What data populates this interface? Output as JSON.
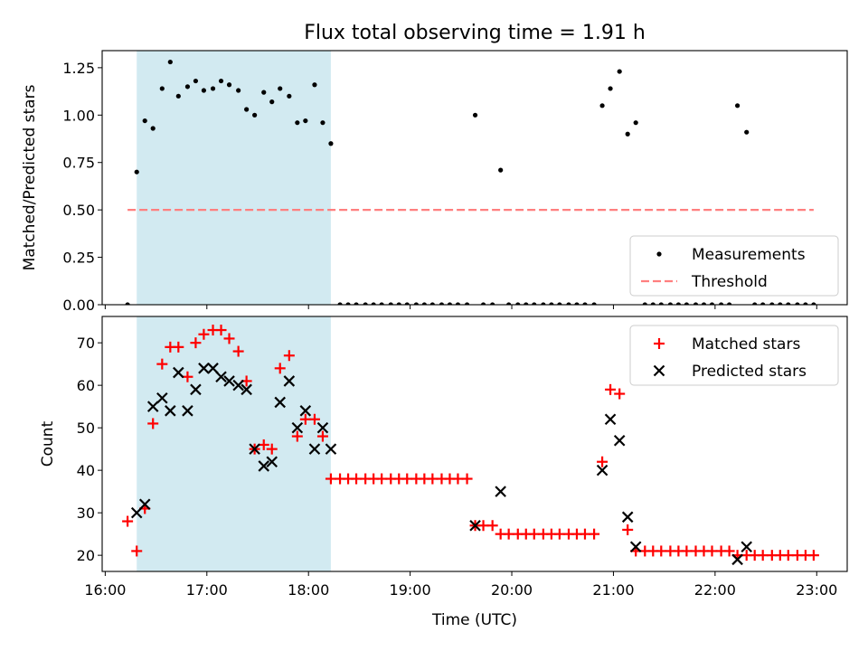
{
  "figure": {
    "title": "Flux total observing time = 1.91 h"
  },
  "chart_data": [
    {
      "type": "scatter",
      "panel": "top",
      "ylabel": "Matched/Predicted stars",
      "xlabel": "",
      "xlim": [
        15.97,
        23.3
      ],
      "ylim": [
        0,
        1.34
      ],
      "yticks": [
        0,
        0.25,
        0.5,
        0.75,
        1.0,
        1.25
      ],
      "ytick_labels": [
        "0.00",
        "0.25",
        "0.50",
        "0.75",
        "1.00",
        "1.25"
      ],
      "xticks": [
        16,
        17,
        18,
        19,
        20,
        21,
        22,
        23
      ],
      "shaded_span": {
        "x0": 16.31,
        "x1": 18.22,
        "color": "#add8e6"
      },
      "series": [
        {
          "name": "Measurements",
          "marker": "dot",
          "color": "#000000",
          "points": [
            [
              16.22,
              0.0
            ],
            [
              16.31,
              0.7
            ],
            [
              16.39,
              0.97
            ],
            [
              16.47,
              0.93
            ],
            [
              16.56,
              1.14
            ],
            [
              16.64,
              1.28
            ],
            [
              16.72,
              1.1
            ],
            [
              16.81,
              1.15
            ],
            [
              16.89,
              1.18
            ],
            [
              16.97,
              1.13
            ],
            [
              17.06,
              1.14
            ],
            [
              17.14,
              1.18
            ],
            [
              17.22,
              1.16
            ],
            [
              17.31,
              1.13
            ],
            [
              17.39,
              1.03
            ],
            [
              17.47,
              1.0
            ],
            [
              17.56,
              1.12
            ],
            [
              17.64,
              1.07
            ],
            [
              17.72,
              1.14
            ],
            [
              17.81,
              1.1
            ],
            [
              17.89,
              0.96
            ],
            [
              17.97,
              0.97
            ],
            [
              18.06,
              1.16
            ],
            [
              18.14,
              0.96
            ],
            [
              18.22,
              0.85
            ],
            [
              18.31,
              0
            ],
            [
              18.39,
              0
            ],
            [
              18.47,
              0
            ],
            [
              18.56,
              0
            ],
            [
              18.64,
              0
            ],
            [
              18.72,
              0
            ],
            [
              18.81,
              0
            ],
            [
              18.89,
              0
            ],
            [
              18.97,
              0
            ],
            [
              19.06,
              0
            ],
            [
              19.14,
              0
            ],
            [
              19.22,
              0
            ],
            [
              19.31,
              0
            ],
            [
              19.39,
              0
            ],
            [
              19.47,
              0
            ],
            [
              19.56,
              0
            ],
            [
              19.64,
              1.0
            ],
            [
              19.72,
              0
            ],
            [
              19.81,
              0
            ],
            [
              19.89,
              0.71
            ],
            [
              19.97,
              0
            ],
            [
              20.06,
              0
            ],
            [
              20.14,
              0
            ],
            [
              20.22,
              0
            ],
            [
              20.31,
              0
            ],
            [
              20.39,
              0
            ],
            [
              20.47,
              0
            ],
            [
              20.56,
              0
            ],
            [
              20.64,
              0
            ],
            [
              20.72,
              0
            ],
            [
              20.81,
              0
            ],
            [
              20.89,
              1.05
            ],
            [
              20.97,
              1.14
            ],
            [
              21.06,
              1.23
            ],
            [
              21.14,
              0.9
            ],
            [
              21.22,
              0.96
            ],
            [
              21.31,
              0
            ],
            [
              21.39,
              0
            ],
            [
              21.47,
              0
            ],
            [
              21.56,
              0
            ],
            [
              21.64,
              0
            ],
            [
              21.72,
              0
            ],
            [
              21.81,
              0
            ],
            [
              21.89,
              0
            ],
            [
              21.97,
              0
            ],
            [
              22.06,
              0
            ],
            [
              22.14,
              0
            ],
            [
              22.22,
              1.05
            ],
            [
              22.31,
              0.91
            ],
            [
              22.39,
              0
            ],
            [
              22.47,
              0
            ],
            [
              22.56,
              0
            ],
            [
              22.64,
              0
            ],
            [
              22.72,
              0
            ],
            [
              22.81,
              0
            ],
            [
              22.89,
              0
            ],
            [
              22.97,
              0
            ]
          ]
        },
        {
          "name": "Threshold",
          "marker": "dashed-line",
          "color": "#ff7f7f",
          "points": [
            [
              16.22,
              0.5
            ],
            [
              22.97,
              0.5
            ]
          ]
        }
      ],
      "legend": {
        "location": "lower-right",
        "entries": [
          "Measurements",
          "Threshold"
        ]
      }
    },
    {
      "type": "scatter",
      "panel": "bottom",
      "ylabel": "Count",
      "xlabel": "Time (UTC)",
      "xlim": [
        15.97,
        23.3
      ],
      "ylim": [
        16.2,
        76.2
      ],
      "yticks": [
        20,
        30,
        40,
        50,
        60,
        70
      ],
      "ytick_labels": [
        "20",
        "30",
        "40",
        "50",
        "60",
        "70"
      ],
      "xticks": [
        16,
        17,
        18,
        19,
        20,
        21,
        22,
        23
      ],
      "xtick_labels": [
        "16:00",
        "17:00",
        "18:00",
        "19:00",
        "20:00",
        "21:00",
        "22:00",
        "23:00"
      ],
      "shaded_span": {
        "x0": 16.31,
        "x1": 18.22,
        "color": "#add8e6"
      },
      "series": [
        {
          "name": "Matched stars",
          "marker": "plus",
          "color": "#ff0000",
          "points": [
            [
              16.22,
              28
            ],
            [
              16.31,
              21
            ],
            [
              16.39,
              31
            ],
            [
              16.47,
              51
            ],
            [
              16.56,
              65
            ],
            [
              16.64,
              69
            ],
            [
              16.72,
              69
            ],
            [
              16.81,
              62
            ],
            [
              16.89,
              70
            ],
            [
              16.97,
              72
            ],
            [
              17.06,
              73
            ],
            [
              17.14,
              73
            ],
            [
              17.22,
              71
            ],
            [
              17.31,
              68
            ],
            [
              17.39,
              61
            ],
            [
              17.47,
              45
            ],
            [
              17.56,
              46
            ],
            [
              17.64,
              45
            ],
            [
              17.72,
              64
            ],
            [
              17.81,
              67
            ],
            [
              17.89,
              48
            ],
            [
              17.97,
              52
            ],
            [
              18.06,
              52
            ],
            [
              18.14,
              48
            ],
            [
              18.22,
              38
            ],
            [
              18.31,
              38
            ],
            [
              18.39,
              38
            ],
            [
              18.47,
              38
            ],
            [
              18.56,
              38
            ],
            [
              18.64,
              38
            ],
            [
              18.72,
              38
            ],
            [
              18.81,
              38
            ],
            [
              18.89,
              38
            ],
            [
              18.97,
              38
            ],
            [
              19.06,
              38
            ],
            [
              19.14,
              38
            ],
            [
              19.22,
              38
            ],
            [
              19.31,
              38
            ],
            [
              19.39,
              38
            ],
            [
              19.47,
              38
            ],
            [
              19.56,
              38
            ],
            [
              19.64,
              27
            ],
            [
              19.72,
              27
            ],
            [
              19.81,
              27
            ],
            [
              19.89,
              25
            ],
            [
              19.97,
              25
            ],
            [
              20.06,
              25
            ],
            [
              20.14,
              25
            ],
            [
              20.22,
              25
            ],
            [
              20.31,
              25
            ],
            [
              20.39,
              25
            ],
            [
              20.47,
              25
            ],
            [
              20.56,
              25
            ],
            [
              20.64,
              25
            ],
            [
              20.72,
              25
            ],
            [
              20.81,
              25
            ],
            [
              20.89,
              42
            ],
            [
              20.97,
              59
            ],
            [
              21.06,
              58
            ],
            [
              21.14,
              26
            ],
            [
              21.22,
              21
            ],
            [
              21.31,
              21
            ],
            [
              21.39,
              21
            ],
            [
              21.47,
              21
            ],
            [
              21.56,
              21
            ],
            [
              21.64,
              21
            ],
            [
              21.72,
              21
            ],
            [
              21.81,
              21
            ],
            [
              21.89,
              21
            ],
            [
              21.97,
              21
            ],
            [
              22.06,
              21
            ],
            [
              22.14,
              21
            ],
            [
              22.22,
              20
            ],
            [
              22.31,
              20
            ],
            [
              22.39,
              20
            ],
            [
              22.47,
              20
            ],
            [
              22.56,
              20
            ],
            [
              22.64,
              20
            ],
            [
              22.72,
              20
            ],
            [
              22.81,
              20
            ],
            [
              22.89,
              20
            ],
            [
              22.97,
              20
            ]
          ]
        },
        {
          "name": "Predicted stars",
          "marker": "x",
          "color": "#000000",
          "points": [
            [
              16.31,
              30
            ],
            [
              16.39,
              32
            ],
            [
              16.47,
              55
            ],
            [
              16.56,
              57
            ],
            [
              16.64,
              54
            ],
            [
              16.72,
              63
            ],
            [
              16.81,
              54
            ],
            [
              16.89,
              59
            ],
            [
              16.97,
              64
            ],
            [
              17.06,
              64
            ],
            [
              17.14,
              62
            ],
            [
              17.22,
              61
            ],
            [
              17.31,
              60
            ],
            [
              17.39,
              59
            ],
            [
              17.47,
              45
            ],
            [
              17.56,
              41
            ],
            [
              17.64,
              42
            ],
            [
              17.72,
              56
            ],
            [
              17.81,
              61
            ],
            [
              17.89,
              50
            ],
            [
              17.97,
              54
            ],
            [
              18.06,
              45
            ],
            [
              18.14,
              50
            ],
            [
              18.22,
              45
            ],
            [
              19.64,
              27
            ],
            [
              19.89,
              35
            ],
            [
              20.89,
              40
            ],
            [
              20.97,
              52
            ],
            [
              21.06,
              47
            ],
            [
              21.14,
              29
            ],
            [
              21.22,
              22
            ],
            [
              22.22,
              19
            ],
            [
              22.31,
              22
            ]
          ]
        }
      ],
      "legend": {
        "location": "upper-right",
        "entries": [
          "Matched stars",
          "Predicted stars"
        ]
      }
    }
  ]
}
